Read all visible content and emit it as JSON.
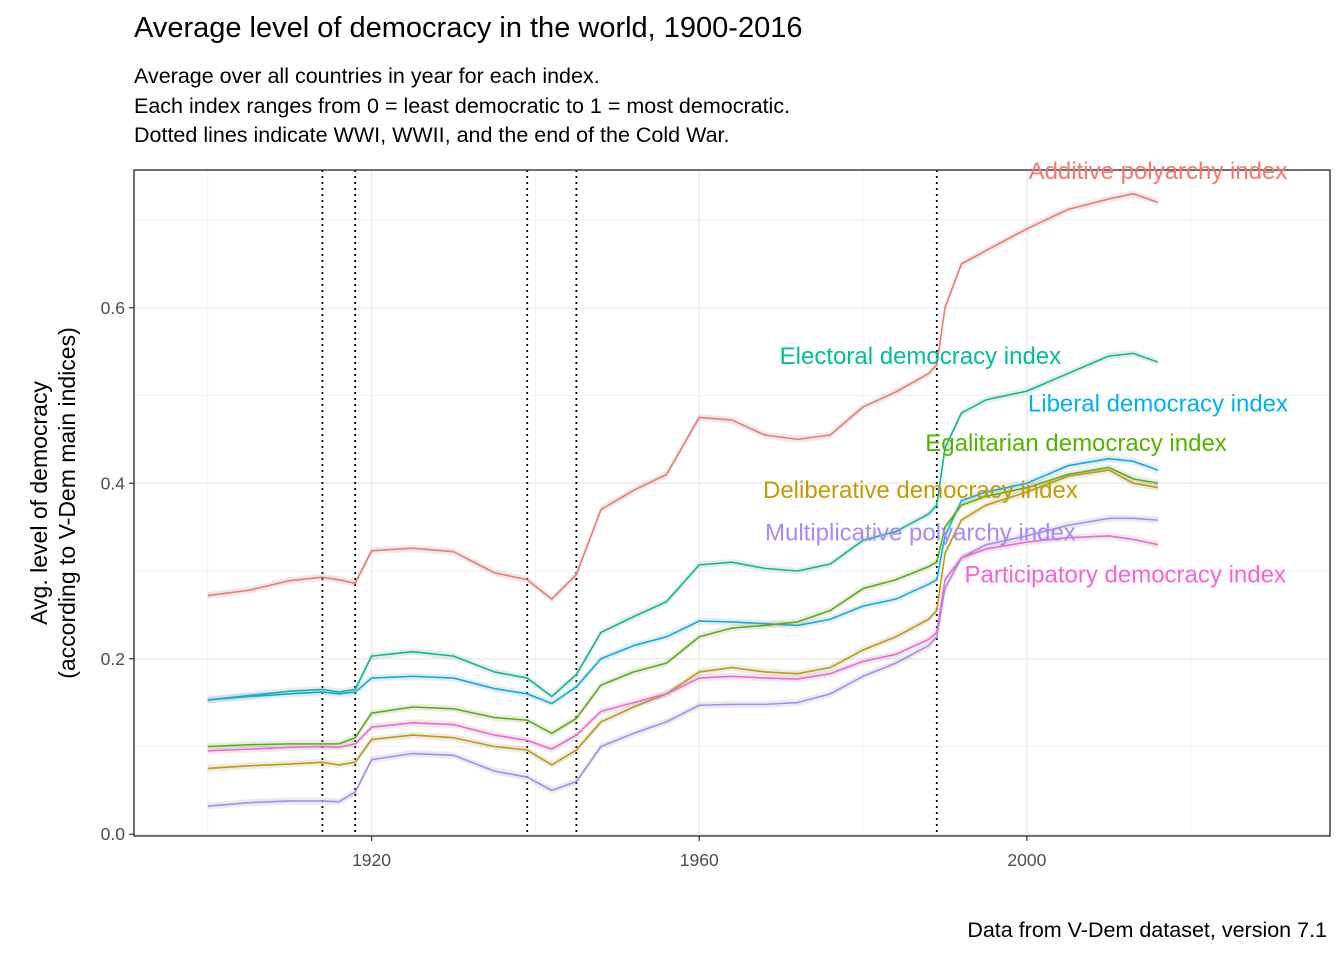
{
  "chart_data": {
    "type": "line",
    "title": "Average level of democracy in the world, 1900-2016",
    "subtitle": [
      "Average over all countries in year for each index.",
      "Each index ranges from 0 = least democratic to 1 = most democratic.",
      "Dotted lines indicate WWI, WWII, and the end of the Cold War."
    ],
    "caption": "Data from V-Dem dataset, version 7.1",
    "xlabel": "",
    "ylabel": [
      "Avg. level of democracy",
      "(according to V-Dem main indices)"
    ],
    "xlim": [
      1891,
      2037
    ],
    "ylim": [
      -0.002,
      0.757
    ],
    "xticks": [
      1920,
      1960,
      2000
    ],
    "yticks": [
      0.0,
      0.2,
      0.4,
      0.6
    ],
    "xtick_labels": [
      "1920",
      "1960",
      "2000"
    ],
    "ytick_labels": [
      "0.0",
      "0.2",
      "0.4",
      "0.6"
    ],
    "grid": true,
    "vlines": [
      1914,
      1918,
      1939,
      1945,
      1989
    ],
    "x": [
      1900,
      1905,
      1910,
      1914,
      1916,
      1918,
      1920,
      1925,
      1930,
      1935,
      1939,
      1942,
      1945,
      1948,
      1952,
      1956,
      1960,
      1964,
      1968,
      1972,
      1976,
      1980,
      1984,
      1988,
      1989,
      1990,
      1992,
      1995,
      2000,
      2005,
      2010,
      2013,
      2016
    ],
    "series": [
      {
        "name": "Additive polyarchy index",
        "color": "#F8766D",
        "label_anchor": [
          2016,
          0.747
        ],
        "values": [
          0.272,
          0.278,
          0.289,
          0.293,
          0.29,
          0.286,
          0.323,
          0.326,
          0.322,
          0.298,
          0.29,
          0.268,
          0.296,
          0.37,
          0.392,
          0.41,
          0.475,
          0.472,
          0.455,
          0.45,
          0.455,
          0.487,
          0.504,
          0.525,
          0.535,
          0.6,
          0.65,
          0.665,
          0.69,
          0.712,
          0.724,
          0.73,
          0.72
        ]
      },
      {
        "name": "Electoral democracy index",
        "color": "#00BE96",
        "label_anchor": [
          1987,
          0.536
        ],
        "values": [
          0.153,
          0.158,
          0.163,
          0.165,
          0.162,
          0.165,
          0.203,
          0.208,
          0.203,
          0.185,
          0.178,
          0.157,
          0.182,
          0.23,
          0.248,
          0.265,
          0.307,
          0.31,
          0.303,
          0.3,
          0.308,
          0.335,
          0.345,
          0.365,
          0.375,
          0.44,
          0.48,
          0.495,
          0.505,
          0.525,
          0.545,
          0.548,
          0.538
        ]
      },
      {
        "name": "Liberal democracy index",
        "color": "#00B0F6",
        "label_anchor": [
          2016,
          0.482
        ],
        "values": [
          0.153,
          0.157,
          0.16,
          0.162,
          0.16,
          0.162,
          0.178,
          0.18,
          0.178,
          0.166,
          0.16,
          0.149,
          0.168,
          0.2,
          0.215,
          0.225,
          0.243,
          0.242,
          0.24,
          0.238,
          0.245,
          0.26,
          0.268,
          0.285,
          0.29,
          0.34,
          0.38,
          0.39,
          0.4,
          0.42,
          0.428,
          0.425,
          0.415
        ]
      },
      {
        "name": "Egalitarian democracy index",
        "color": "#53B400",
        "label_anchor": [
          2006,
          0.437
        ],
        "values": [
          0.1,
          0.102,
          0.103,
          0.103,
          0.103,
          0.11,
          0.138,
          0.145,
          0.143,
          0.133,
          0.13,
          0.115,
          0.132,
          0.17,
          0.185,
          0.195,
          0.225,
          0.235,
          0.238,
          0.242,
          0.255,
          0.28,
          0.29,
          0.305,
          0.31,
          0.35,
          0.375,
          0.385,
          0.395,
          0.41,
          0.418,
          0.405,
          0.4
        ]
      },
      {
        "name": "Deliberative democracy index",
        "color": "#C49A00",
        "label_anchor": [
          1987,
          0.383
        ],
        "values": [
          0.075,
          0.078,
          0.08,
          0.082,
          0.079,
          0.082,
          0.108,
          0.113,
          0.11,
          0.1,
          0.096,
          0.079,
          0.096,
          0.128,
          0.145,
          0.16,
          0.185,
          0.19,
          0.185,
          0.183,
          0.19,
          0.21,
          0.225,
          0.245,
          0.255,
          0.32,
          0.358,
          0.375,
          0.39,
          0.408,
          0.415,
          0.4,
          0.395
        ]
      },
      {
        "name": "Multiplicative polyarchy index",
        "color": "#A58AFF",
        "label_anchor": [
          1987,
          0.335
        ],
        "values": [
          0.032,
          0.036,
          0.038,
          0.038,
          0.037,
          0.048,
          0.085,
          0.092,
          0.09,
          0.072,
          0.065,
          0.05,
          0.06,
          0.1,
          0.115,
          0.128,
          0.147,
          0.148,
          0.148,
          0.15,
          0.16,
          0.18,
          0.195,
          0.215,
          0.225,
          0.28,
          0.315,
          0.33,
          0.34,
          0.352,
          0.36,
          0.36,
          0.358
        ]
      },
      {
        "name": "Participatory democracy index",
        "color": "#FB61D7",
        "label_anchor": [
          2012,
          0.287
        ],
        "values": [
          0.095,
          0.097,
          0.099,
          0.1,
          0.099,
          0.103,
          0.122,
          0.127,
          0.125,
          0.113,
          0.107,
          0.097,
          0.113,
          0.14,
          0.15,
          0.16,
          0.178,
          0.18,
          0.178,
          0.177,
          0.183,
          0.197,
          0.205,
          0.222,
          0.23,
          0.29,
          0.315,
          0.325,
          0.333,
          0.338,
          0.34,
          0.336,
          0.33
        ]
      }
    ]
  }
}
